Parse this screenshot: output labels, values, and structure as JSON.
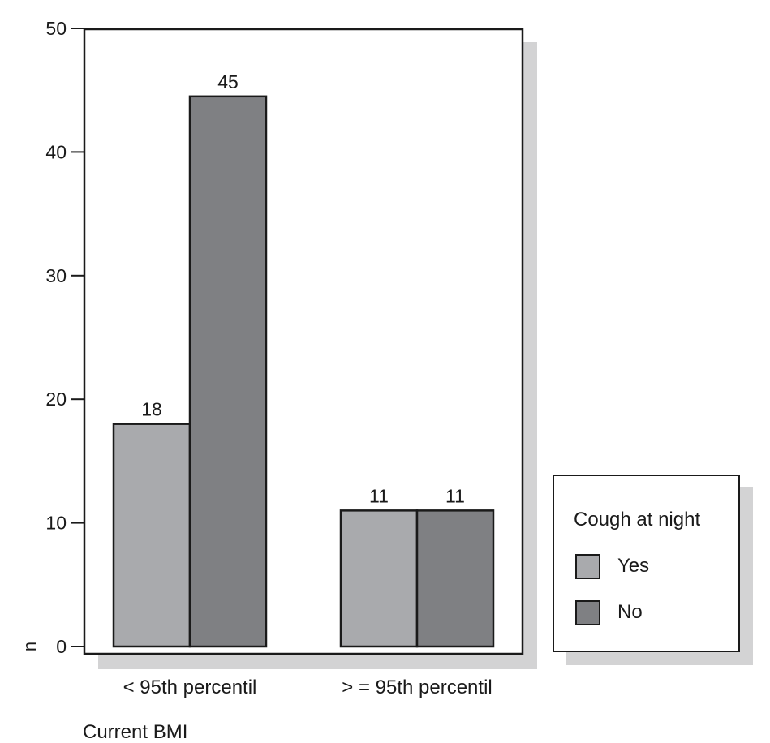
{
  "chart_data": {
    "type": "bar",
    "xlabel": "Current BMI",
    "ylabel": "n",
    "ylim": [
      0,
      50
    ],
    "yticks": [
      0,
      10,
      20,
      30,
      40,
      50
    ],
    "categories": [
      "< 95th percentil",
      "> = 95th percentil"
    ],
    "series": [
      {
        "name": "Yes",
        "values": [
          18,
          11
        ],
        "labels": [
          "18",
          "11"
        ],
        "color": "#a9aaad"
      },
      {
        "name": "No",
        "values": [
          44.5,
          11
        ],
        "labels": [
          "45",
          "11"
        ],
        "color": "#7f8083"
      }
    ],
    "legend_title": "Cough at night",
    "legend_position": "bottom-right, outside plot",
    "grid": false,
    "shadow_color": "#d3d3d4"
  }
}
